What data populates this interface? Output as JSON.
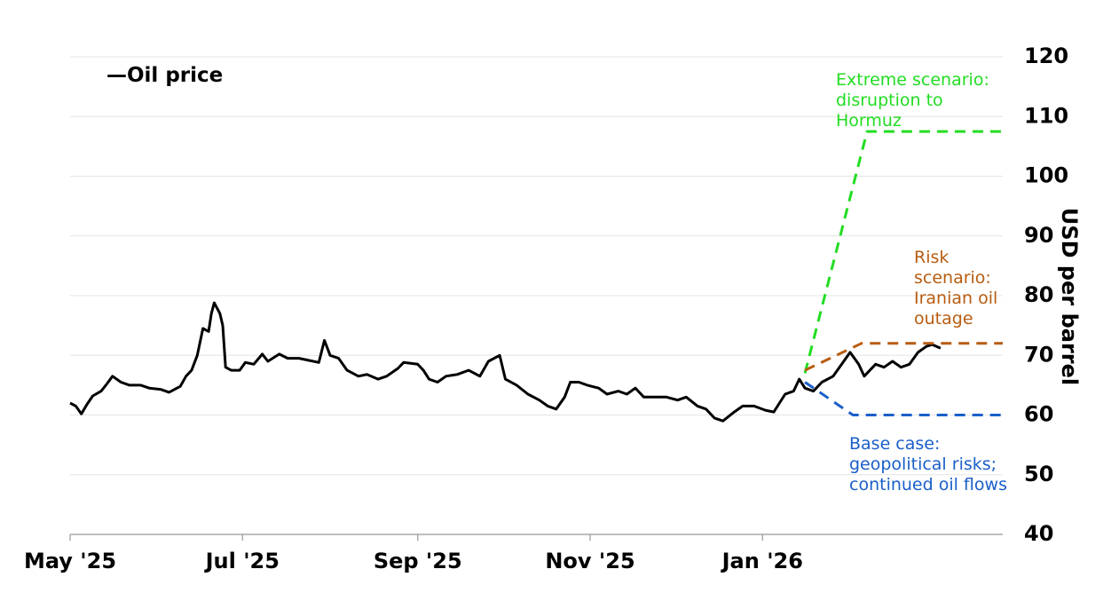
{
  "chart_data": {
    "type": "line",
    "title": "",
    "xlabel": "",
    "ylabel": "USD per barrel",
    "ylim": [
      40,
      120
    ],
    "yticks": [
      40,
      50,
      60,
      70,
      80,
      90,
      100,
      110,
      120
    ],
    "ytick_labels": [
      "40",
      "50",
      "60",
      "70",
      "80",
      "90",
      "100",
      "110",
      "120"
    ],
    "xlim": [
      "2025-05-01",
      "2026-03-27"
    ],
    "xticks": [
      {
        "date": "2025-05-01",
        "label": "May '25"
      },
      {
        "date": "2025-07-01",
        "label": "Jul '25"
      },
      {
        "date": "2025-09-01",
        "label": "Sep '25"
      },
      {
        "date": "2025-11-01",
        "label": "Nov '25"
      },
      {
        "date": "2026-01-01",
        "label": "Jan '26"
      }
    ],
    "grid": true,
    "legend": {
      "placement": "top-left",
      "entries": [
        "Oil price"
      ],
      "marker": "—"
    },
    "series": [
      {
        "name": "Oil price",
        "color": "#000000",
        "points": [
          [
            "2025-05-01",
            62.0
          ],
          [
            "2025-05-03",
            61.5
          ],
          [
            "2025-05-05",
            60.2
          ],
          [
            "2025-05-07",
            61.8
          ],
          [
            "2025-05-09",
            63.2
          ],
          [
            "2025-05-12",
            64.0
          ],
          [
            "2025-05-14",
            65.2
          ],
          [
            "2025-05-16",
            66.5
          ],
          [
            "2025-05-19",
            65.5
          ],
          [
            "2025-05-22",
            65.0
          ],
          [
            "2025-05-26",
            65.0
          ],
          [
            "2025-05-29",
            64.5
          ],
          [
            "2025-06-02",
            64.3
          ],
          [
            "2025-06-05",
            63.8
          ],
          [
            "2025-06-09",
            64.8
          ],
          [
            "2025-06-11",
            66.5
          ],
          [
            "2025-06-13",
            67.5
          ],
          [
            "2025-06-15",
            70.0
          ],
          [
            "2025-06-17",
            74.5
          ],
          [
            "2025-06-19",
            74.0
          ],
          [
            "2025-06-20",
            77.0
          ],
          [
            "2025-06-21",
            78.8
          ],
          [
            "2025-06-23",
            77.0
          ],
          [
            "2025-06-24",
            75.0
          ],
          [
            "2025-06-25",
            68.0
          ],
          [
            "2025-06-27",
            67.5
          ],
          [
            "2025-06-30",
            67.5
          ],
          [
            "2025-07-02",
            68.8
          ],
          [
            "2025-07-05",
            68.5
          ],
          [
            "2025-07-08",
            70.2
          ],
          [
            "2025-07-10",
            69.0
          ],
          [
            "2025-07-14",
            70.2
          ],
          [
            "2025-07-17",
            69.5
          ],
          [
            "2025-07-21",
            69.5
          ],
          [
            "2025-07-24",
            69.2
          ],
          [
            "2025-07-28",
            68.8
          ],
          [
            "2025-07-30",
            72.5
          ],
          [
            "2025-08-01",
            70.0
          ],
          [
            "2025-08-04",
            69.5
          ],
          [
            "2025-08-07",
            67.5
          ],
          [
            "2025-08-11",
            66.5
          ],
          [
            "2025-08-14",
            66.8
          ],
          [
            "2025-08-18",
            66.0
          ],
          [
            "2025-08-21",
            66.5
          ],
          [
            "2025-08-25",
            67.8
          ],
          [
            "2025-08-27",
            68.8
          ],
          [
            "2025-09-01",
            68.5
          ],
          [
            "2025-09-03",
            67.5
          ],
          [
            "2025-09-05",
            66.0
          ],
          [
            "2025-09-08",
            65.5
          ],
          [
            "2025-09-11",
            66.5
          ],
          [
            "2025-09-15",
            66.8
          ],
          [
            "2025-09-19",
            67.5
          ],
          [
            "2025-09-23",
            66.5
          ],
          [
            "2025-09-26",
            69.0
          ],
          [
            "2025-09-30",
            70.0
          ],
          [
            "2025-10-02",
            66.0
          ],
          [
            "2025-10-06",
            65.0
          ],
          [
            "2025-10-10",
            63.5
          ],
          [
            "2025-10-14",
            62.5
          ],
          [
            "2025-10-17",
            61.5
          ],
          [
            "2025-10-20",
            61.0
          ],
          [
            "2025-10-23",
            63.0
          ],
          [
            "2025-10-25",
            65.5
          ],
          [
            "2025-10-28",
            65.5
          ],
          [
            "2025-10-31",
            65.0
          ],
          [
            "2025-11-04",
            64.5
          ],
          [
            "2025-11-07",
            63.5
          ],
          [
            "2025-11-11",
            64.0
          ],
          [
            "2025-11-14",
            63.5
          ],
          [
            "2025-11-17",
            64.5
          ],
          [
            "2025-11-20",
            63.0
          ],
          [
            "2025-11-24",
            63.0
          ],
          [
            "2025-11-28",
            63.0
          ],
          [
            "2025-12-02",
            62.5
          ],
          [
            "2025-12-05",
            63.0
          ],
          [
            "2025-12-09",
            61.5
          ],
          [
            "2025-12-12",
            61.0
          ],
          [
            "2025-12-15",
            59.5
          ],
          [
            "2025-12-18",
            59.0
          ],
          [
            "2025-12-22",
            60.5
          ],
          [
            "2025-12-25",
            61.5
          ],
          [
            "2025-12-29",
            61.5
          ],
          [
            "2026-01-02",
            60.8
          ],
          [
            "2026-01-05",
            60.5
          ],
          [
            "2026-01-07",
            62.0
          ],
          [
            "2026-01-09",
            63.5
          ],
          [
            "2026-01-12",
            64.0
          ],
          [
            "2026-01-14",
            66.0
          ],
          [
            "2026-01-16",
            64.5
          ],
          [
            "2026-01-19",
            64.0
          ],
          [
            "2026-01-22",
            65.5
          ],
          [
            "2026-01-26",
            66.5
          ],
          [
            "2026-01-29",
            68.5
          ],
          [
            "2026-02-01",
            70.5
          ],
          [
            "2026-02-04",
            68.5
          ],
          [
            "2026-02-06",
            66.5
          ],
          [
            "2026-02-10",
            68.5
          ],
          [
            "2026-02-13",
            68.0
          ],
          [
            "2026-02-16",
            69.0
          ],
          [
            "2026-02-19",
            68.0
          ],
          [
            "2026-02-22",
            68.5
          ],
          [
            "2026-02-25",
            70.5
          ],
          [
            "2026-02-28",
            71.5
          ],
          [
            "2026-03-02",
            71.8
          ],
          [
            "2026-03-05",
            71.2
          ]
        ]
      },
      {
        "name": "Extreme scenario",
        "color": "#22dd22",
        "dash": true,
        "points": [
          [
            "2026-01-16",
            67.0
          ],
          [
            "2026-02-07",
            107.5
          ],
          [
            "2026-03-27",
            107.5
          ]
        ]
      },
      {
        "name": "Risk scenario",
        "color": "#b85c10",
        "dash": true,
        "points": [
          [
            "2026-01-16",
            67.5
          ],
          [
            "2026-02-05",
            72.0
          ],
          [
            "2026-03-27",
            72.0
          ]
        ]
      },
      {
        "name": "Base case",
        "color": "#1a5fc9",
        "dash": true,
        "points": [
          [
            "2026-01-16",
            65.5
          ],
          [
            "2026-02-02",
            60.0
          ],
          [
            "2026-03-27",
            60.0
          ]
        ]
      }
    ],
    "annotations": [
      {
        "lines": [
          "Extreme scenario:",
          "disruption to",
          "Hormuz"
        ],
        "color": "#22dd22"
      },
      {
        "lines": [
          "Risk",
          "scenario:",
          "Iranian oil",
          "outage"
        ],
        "color": "#b85c10"
      },
      {
        "lines": [
          "Base case:",
          "geopolitical risks;",
          "continued oil flows"
        ],
        "color": "#1a5fc9"
      }
    ]
  }
}
